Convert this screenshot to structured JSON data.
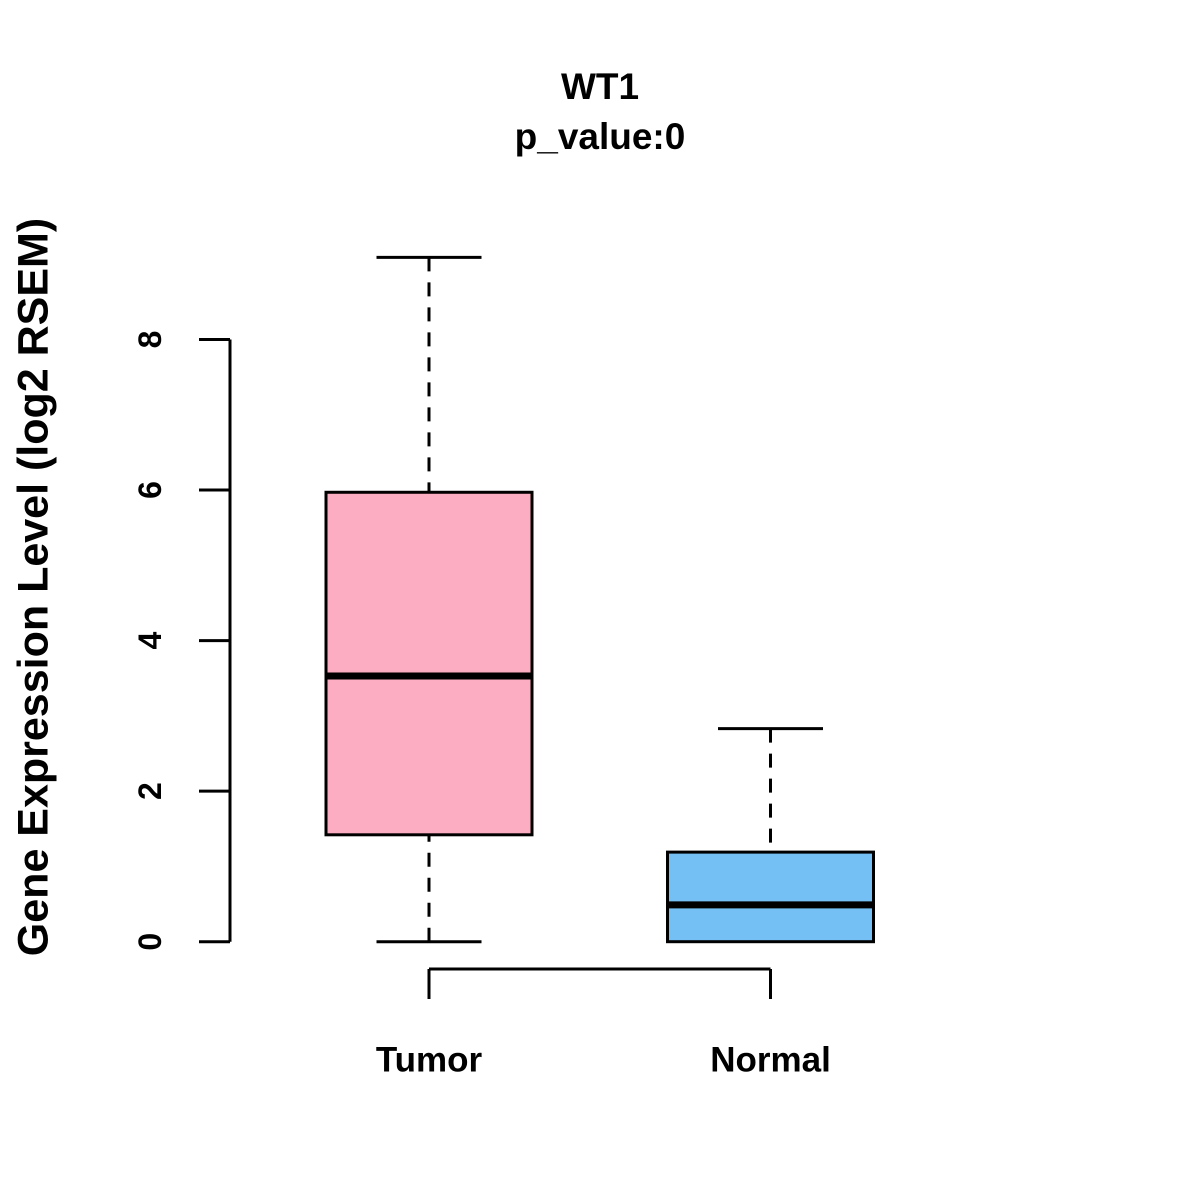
{
  "figure": {
    "title": "WT1",
    "subtitle": "p_value:0",
    "ylabel": "Gene Expression Level (log2 RSEM)"
  },
  "chart_data": {
    "type": "boxplot",
    "title": "WT1",
    "subtitle": "p_value:0",
    "xlabel": "",
    "ylabel": "Gene Expression Level (log2 RSEM)",
    "categories": [
      "Tumor",
      "Normal"
    ],
    "yticks": [
      0,
      2,
      4,
      6,
      8
    ],
    "ylim": [
      0,
      9.1
    ],
    "grid": false,
    "legend": "none",
    "groups": [
      {
        "label": "Tumor",
        "fill_color": "#FCADC1",
        "whisker_low": 0,
        "q1": 1.42,
        "median": 3.53,
        "q3": 5.97,
        "whisker_high": 9.09
      },
      {
        "label": "Normal",
        "fill_color": "#74BFF4",
        "whisker_low": 0,
        "q1": 0,
        "median": 0.49,
        "q3": 1.19,
        "whisker_high": 2.83
      }
    ],
    "colors": {
      "axis": "#000000",
      "box_border": "#000000",
      "median_line": "#000000",
      "tumor_fill": "#FCADC1",
      "normal_fill": "#74BFF4"
    }
  }
}
